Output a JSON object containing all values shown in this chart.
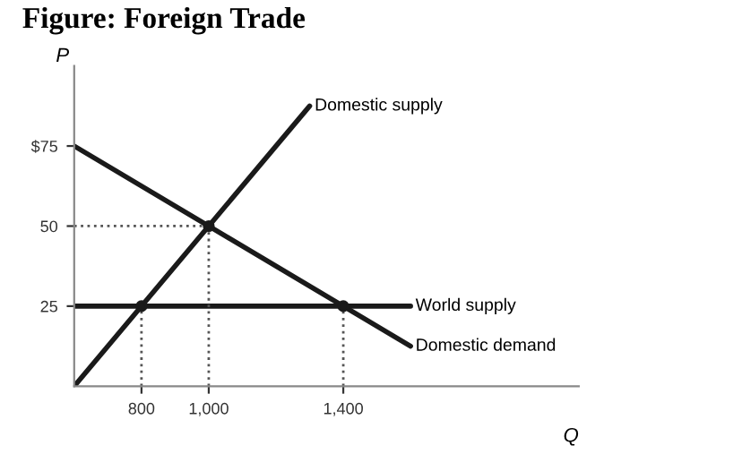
{
  "chart_data": {
    "type": "line",
    "title": "Figure: Foreign Trade",
    "xlabel": "Q",
    "ylabel": "P",
    "xlim": [
      600,
      2100
    ],
    "ylim": [
      0,
      100
    ],
    "xticks": [
      {
        "value": 800,
        "label": "800"
      },
      {
        "value": 1000,
        "label": "1,000"
      },
      {
        "value": 1400,
        "label": "1,400"
      }
    ],
    "yticks": [
      25,
      50,
      {
        "value": 75,
        "label": "$75"
      }
    ],
    "grid": false,
    "legend": false,
    "series": [
      {
        "name": "Domestic supply",
        "color": "#1a1a1a",
        "x": [
          600,
          1300
        ],
        "values": [
          0,
          87.5
        ]
      },
      {
        "name": "Domestic demand",
        "color": "#1a1a1a",
        "x": [
          600,
          1600
        ],
        "values": [
          75,
          12.5
        ]
      },
      {
        "name": "World supply",
        "color": "#1a1a1a",
        "x": [
          600,
          1600
        ],
        "values": [
          25,
          25
        ]
      },
      {
        "color": "#555555",
        "line_style": "dotted",
        "x": [
          800,
          800
        ],
        "values": [
          0,
          25
        ]
      },
      {
        "color": "#555555",
        "line_style": "dotted",
        "x": [
          1000,
          1000
        ],
        "values": [
          0,
          50
        ]
      },
      {
        "color": "#555555",
        "line_style": "dotted",
        "x": [
          1400,
          1400
        ],
        "values": [
          0,
          25
        ]
      },
      {
        "color": "#555555",
        "line_style": "dotted",
        "x": [
          600,
          1000
        ],
        "values": [
          50,
          50
        ]
      },
      {
        "type": "scatter",
        "color": "#1a1a1a",
        "x": [
          800,
          1000,
          1400
        ],
        "values": [
          25,
          50,
          25
        ]
      }
    ]
  }
}
